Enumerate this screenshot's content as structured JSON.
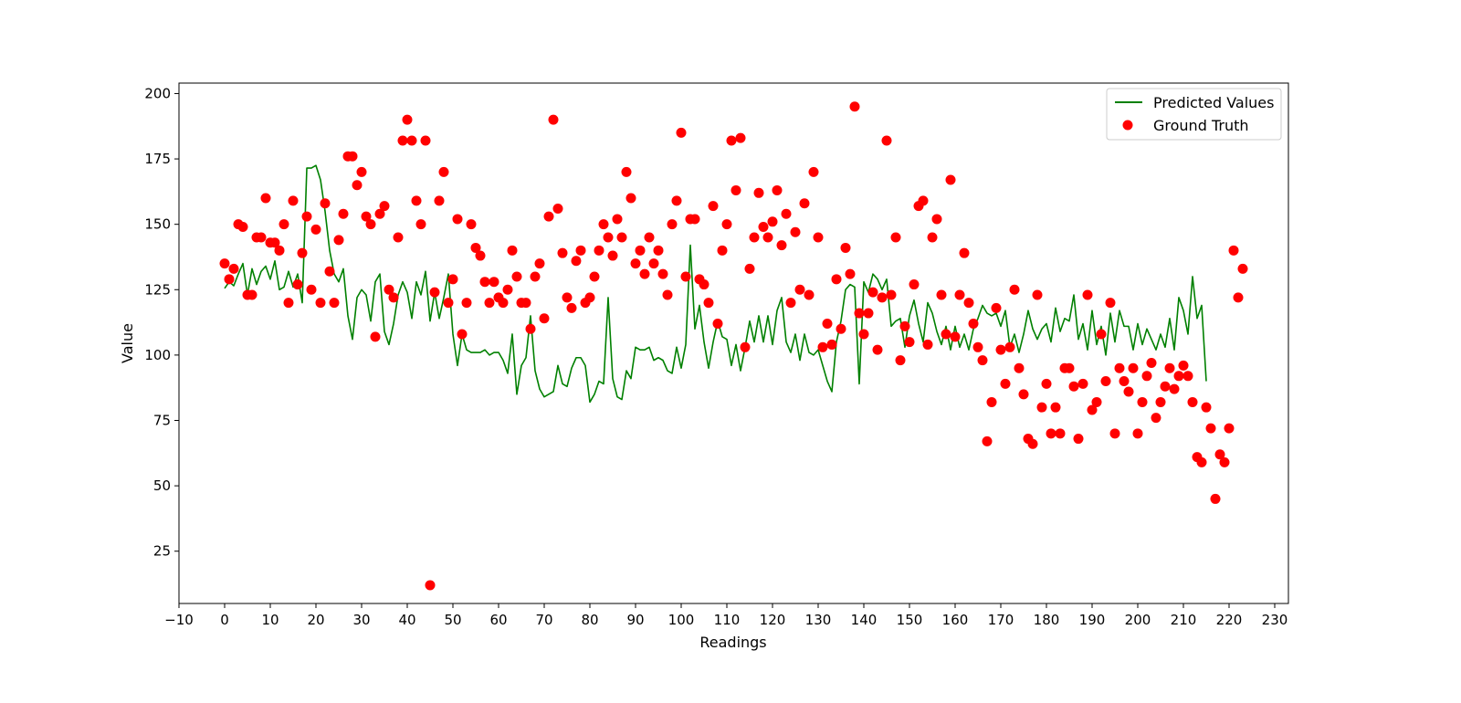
{
  "chart_data": {
    "type": "line+scatter",
    "title": "",
    "xlabel": "Readings",
    "ylabel": "Value",
    "xlim": [
      -10,
      233
    ],
    "ylim": [
      5,
      204
    ],
    "xticks": [
      -10,
      0,
      10,
      20,
      30,
      40,
      50,
      60,
      70,
      80,
      90,
      100,
      110,
      120,
      130,
      140,
      150,
      160,
      170,
      180,
      190,
      200,
      210,
      220,
      230
    ],
    "yticks": [
      25,
      50,
      75,
      100,
      125,
      150,
      175,
      200
    ],
    "grid": false,
    "legend_position": "top-right",
    "series": [
      {
        "name": "Predicted Values",
        "kind": "line",
        "color": "#008000",
        "x_start": 0,
        "values": [
          125.5,
          128,
          126.5,
          131,
          135,
          123,
          133,
          127,
          132,
          134,
          129,
          136,
          125,
          126,
          132,
          126,
          131,
          120,
          171.5,
          171.5,
          172.5,
          167,
          155,
          140,
          131,
          128,
          133,
          115,
          106,
          122,
          125,
          123,
          113,
          128,
          131,
          109,
          104,
          112,
          123,
          128,
          124,
          114,
          128,
          123,
          132,
          113,
          124,
          114,
          122,
          131,
          108,
          96,
          108,
          102,
          101,
          101,
          101,
          102,
          100,
          101,
          101,
          98,
          93,
          108,
          85,
          96,
          99,
          115,
          94,
          87,
          84,
          85,
          86,
          96,
          89,
          88,
          95,
          99,
          99,
          96,
          82,
          85,
          90,
          89,
          122,
          91,
          84,
          83,
          94,
          91,
          103,
          102,
          102,
          103,
          98,
          99,
          98,
          94,
          93,
          103,
          95,
          104,
          142,
          110,
          119,
          105,
          95,
          105,
          113,
          107,
          106,
          96,
          104,
          94,
          103,
          113,
          105,
          115,
          105,
          115,
          104,
          117,
          122,
          105,
          101,
          108,
          98,
          108,
          101,
          100,
          102,
          96,
          90,
          86,
          105,
          113,
          125,
          127,
          126,
          89,
          128,
          124,
          131,
          129,
          125,
          129,
          111,
          113,
          114,
          103,
          115,
          121,
          112,
          105,
          120,
          116,
          109,
          104,
          111,
          102,
          111,
          103,
          108,
          102,
          110,
          114,
          119,
          116,
          115,
          116,
          111,
          117,
          103,
          108,
          101,
          108,
          117,
          110,
          106,
          110,
          112,
          105,
          118,
          109,
          114,
          113,
          123,
          106,
          112,
          102,
          117,
          104,
          111,
          100,
          116,
          105,
          117,
          111,
          111,
          102,
          112,
          104,
          110,
          106,
          102,
          108,
          103,
          114,
          102,
          122,
          117,
          108,
          130,
          114,
          119,
          90
        ]
      },
      {
        "name": "Ground Truth",
        "kind": "scatter",
        "color": "#ff0000",
        "x": [
          0,
          1,
          2,
          3,
          4,
          5,
          6,
          7,
          8,
          9,
          10,
          11,
          12,
          13,
          14,
          15,
          16,
          17,
          18,
          19,
          20,
          21,
          22,
          23,
          24,
          25,
          26,
          27,
          28,
          29,
          30,
          31,
          32,
          33,
          34,
          35,
          36,
          37,
          38,
          39,
          40,
          41,
          42,
          43,
          44,
          45,
          46,
          47,
          48,
          49,
          50,
          51,
          52,
          53,
          54,
          55,
          56,
          57,
          58,
          59,
          60,
          61,
          62,
          63,
          64,
          65,
          66,
          67,
          68,
          69,
          70,
          71,
          72,
          73,
          74,
          75,
          76,
          77,
          78,
          79,
          80,
          81,
          82,
          83,
          84,
          85,
          86,
          87,
          88,
          89,
          90,
          91,
          92,
          93,
          94,
          95,
          96,
          97,
          98,
          99,
          100,
          101,
          102,
          103,
          104,
          105,
          106,
          107,
          108,
          109,
          110,
          111,
          112,
          113,
          114,
          115,
          116,
          117,
          118,
          119,
          120,
          121,
          122,
          123,
          124,
          125,
          126,
          127,
          128,
          129,
          130,
          131,
          132,
          133,
          134,
          135,
          136,
          137,
          138,
          139,
          140,
          141,
          142,
          143,
          144,
          145,
          146,
          147,
          148,
          149,
          150,
          151,
          152,
          153,
          154,
          155,
          156,
          157,
          158,
          159,
          160,
          161,
          162,
          163,
          164,
          165,
          166,
          167,
          168,
          169,
          170,
          171,
          172,
          173,
          174,
          175,
          176,
          177,
          178,
          179,
          180,
          181,
          182,
          183,
          184,
          185,
          186,
          187,
          188,
          189,
          190,
          191,
          192,
          193,
          194,
          195,
          196,
          197,
          198,
          199,
          200,
          201,
          202,
          203,
          204,
          205,
          206,
          207,
          208,
          209,
          210,
          211,
          212,
          213,
          214,
          215,
          216,
          217,
          218,
          219,
          220,
          221,
          222,
          223
        ],
        "y": [
          135,
          129,
          133,
          150,
          149,
          123,
          123,
          145,
          145,
          160,
          143,
          143,
          140,
          150,
          120,
          159,
          127,
          139,
          153,
          125,
          148,
          120,
          158,
          132,
          120,
          144,
          154,
          176,
          176,
          165,
          170,
          153,
          150,
          107,
          154,
          157,
          125,
          122,
          145,
          182,
          190,
          182,
          159,
          150,
          182,
          12,
          124,
          159,
          170,
          120,
          129,
          152,
          108,
          120,
          150,
          141,
          138,
          128,
          120,
          128,
          122,
          120,
          125,
          140,
          130,
          120,
          120,
          110,
          130,
          135,
          114,
          153,
          190,
          156,
          139,
          122,
          118,
          136,
          140,
          120,
          122,
          130,
          140,
          150,
          145,
          138,
          152,
          145,
          170,
          160,
          135,
          140,
          131,
          145,
          135,
          140,
          131,
          123,
          150,
          159,
          185,
          130,
          152,
          152,
          129,
          127,
          120,
          157,
          112,
          140,
          150,
          182,
          163,
          183,
          103,
          133,
          145,
          162,
          149,
          145,
          151,
          163,
          142,
          154,
          120,
          147,
          125,
          158,
          123,
          170,
          145,
          103,
          112,
          104,
          129,
          110,
          141,
          131,
          195,
          116,
          108,
          116,
          124,
          102,
          122,
          182,
          123,
          145,
          98,
          111,
          105,
          127,
          157,
          159,
          104,
          145,
          152,
          123,
          108,
          167,
          107,
          123,
          139,
          120,
          112,
          103,
          98,
          67,
          82,
          118,
          102,
          89,
          103,
          125,
          95,
          85,
          68,
          66,
          123,
          80,
          89,
          70,
          80,
          70,
          95,
          95,
          88,
          68,
          89,
          123,
          79,
          82,
          108,
          90,
          120,
          70,
          95,
          90,
          86,
          95,
          70,
          82,
          92,
          97,
          76,
          82,
          88,
          95,
          87,
          92,
          96,
          92,
          82,
          61,
          59,
          80,
          72,
          45,
          62,
          59,
          72,
          140,
          122,
          133
        ]
      }
    ]
  }
}
